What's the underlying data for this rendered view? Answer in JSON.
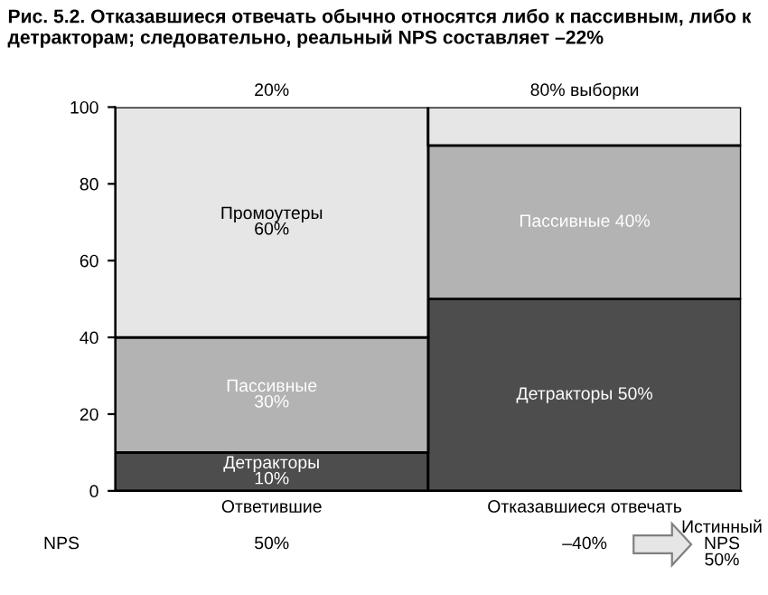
{
  "chart_data": {
    "type": "bar",
    "stacked": true,
    "title": "Рис. 5.2. Отказавшиеся отвечать обычно относятся либо к пассивным, либо к детракторам; следовательно, реальный NPS составляет –22%",
    "categories": [
      "Ответившие",
      "Отказавшиеся отвечать"
    ],
    "ylim": [
      0,
      100
    ],
    "yticks": [
      0,
      20,
      40,
      60,
      80,
      100
    ],
    "series": [
      {
        "color": "#4d4d4d",
        "values": [
          10,
          50
        ],
        "value_labels": [
          "Детракторы\n10%",
          "Детракторы 50%"
        ]
      },
      {
        "color": "#b3b3b3",
        "values": [
          30,
          40
        ],
        "value_labels": [
          "Пассивные\n30%",
          "Пассивные 40%"
        ]
      },
      {
        "color": "#e6e6e6",
        "values": [
          60,
          10
        ],
        "value_labels": [
          "Промоутеры\n60%",
          null
        ]
      }
    ],
    "annotations": [
      "20%",
      "80% выборки",
      "NPS",
      "50%",
      "–40%",
      "Истинный\nNPS\n50%"
    ],
    "grid": false,
    "legend": false
  }
}
